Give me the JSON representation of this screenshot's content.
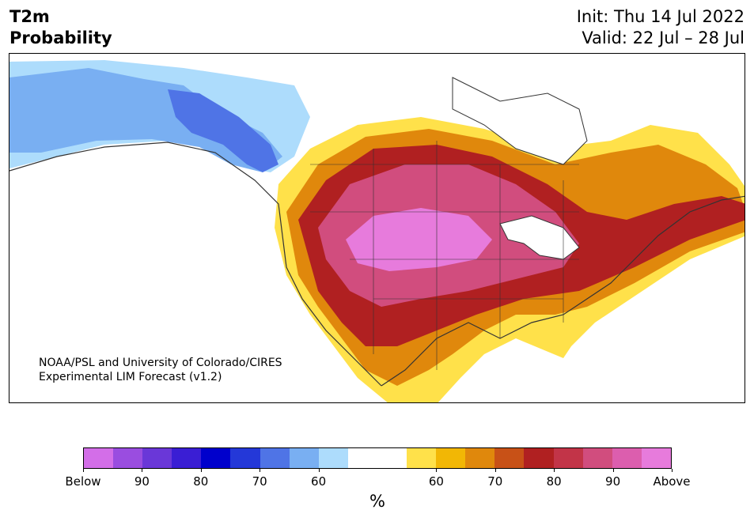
{
  "title": {
    "line1": "T2m",
    "line2": "Probability"
  },
  "init": "Init: Thu 14 Jul 2022",
  "valid": "Valid: 22 Jul – 28 Jul",
  "credit": {
    "line1": "NOAA/PSL and University of Colorado/CIRES",
    "line2": "Experimental LIM Forecast (v1.2)"
  },
  "colorbar": {
    "unit": "%",
    "colors": [
      "#d36ee8",
      "#9a4de0",
      "#6a37d8",
      "#3a1ed4",
      "#0000cc",
      "#2438d8",
      "#4f74e6",
      "#79aff2",
      "#addcfc",
      "#ffffff",
      "#ffffff",
      "#ffe14a",
      "#f2b705",
      "#e0880c",
      "#c85117",
      "#b02021",
      "#c23448",
      "#d14d7e",
      "#dc5eae",
      "#e77bdc"
    ],
    "tick_labels": [
      "Below",
      "90",
      "80",
      "70",
      "60",
      "60",
      "70",
      "80",
      "90",
      "Above"
    ]
  },
  "colors": {
    "ocean": "#ffffff",
    "coast": "#333333"
  }
}
